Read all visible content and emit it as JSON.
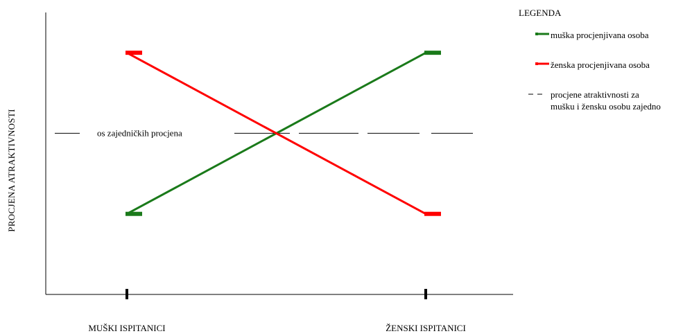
{
  "chart_data": {
    "type": "line",
    "categories": [
      "MUŠKI ISPITANICI",
      "ŽENSKI ISPITANICI"
    ],
    "ylabel": "PROCJENA ATRAKTIVNOSTI",
    "xlabel": "",
    "series": [
      {
        "name": "muška procjenjivana osoba",
        "values": [
          1,
          3
        ],
        "color": "#1a7a1a"
      },
      {
        "name": "ženska procjenjivana osoba",
        "values": [
          3,
          1
        ],
        "color": "#ff0000"
      }
    ],
    "ylim": [
      0,
      3.5
    ],
    "reference_line": {
      "value": 2,
      "label": "os zajedničkih procjena",
      "style": "dashed"
    },
    "grid": false,
    "legend_position": "top-right"
  },
  "legend": {
    "title": "LEGENDA",
    "items": [
      {
        "lines": [
          "muška procjenjivana osoba"
        ],
        "color": "#1a7a1a",
        "kind": "line"
      },
      {
        "lines": [
          "ženska procjenjivana osoba"
        ],
        "color": "#ff0000",
        "kind": "line"
      },
      {
        "lines": [
          "procjene atraktivnosti za",
          "mušku i žensku osobu zajedno"
        ],
        "color": "#000000",
        "kind": "dashed"
      }
    ]
  }
}
